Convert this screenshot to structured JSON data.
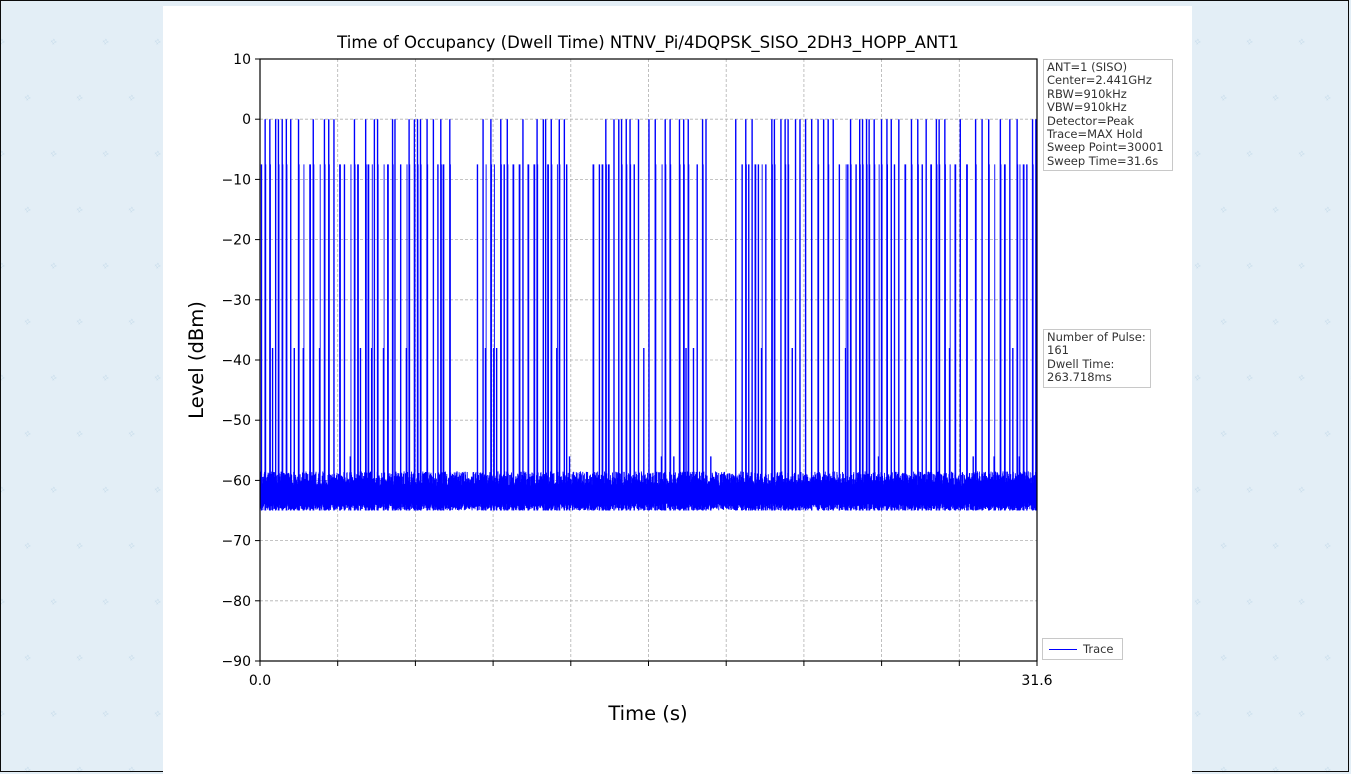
{
  "chart_data": {
    "type": "line",
    "title": "Time of Occupancy (Dwell Time) NTNV_Pi/4DQPSK_SISO_2DH3_HOPP_ANT1",
    "xlabel": "Time (s)",
    "ylabel": "Level (dBm)",
    "xlim": [
      0.0,
      31.6
    ],
    "ylim": [
      -90,
      10
    ],
    "x_tick_labels": [
      "0.0",
      "31.6"
    ],
    "y_ticks": [
      10,
      0,
      -10,
      -20,
      -30,
      -40,
      -50,
      -60,
      -70,
      -80,
      -90
    ],
    "y_tick_labels": [
      "10",
      "0",
      "−10",
      "−20",
      "−30",
      "−40",
      "−50",
      "−60",
      "−70",
      "−80",
      "−90"
    ],
    "grid": true,
    "legend_position": "bottom-right outside",
    "series": [
      {
        "name": "Trace",
        "color": "#0000ff",
        "noise_floor_dbm": [
          -65,
          -61
        ],
        "pulse_levels_dbm": [
          0,
          -7.5,
          -38,
          -56
        ],
        "quiet_intervals_s": [
          [
            7.9,
            8.8
          ],
          [
            12.6,
            13.5
          ],
          [
            18.5,
            19.3
          ]
        ],
        "number_of_pulses": 161
      }
    ]
  },
  "settings_box": {
    "lines": [
      "ANT=1 (SISO)",
      "Center=2.441GHz",
      "RBW=910kHz",
      "VBW=910kHz",
      "Detector=Peak",
      "Trace=MAX Hold",
      "Sweep Point=30001",
      "Sweep Time=31.6s"
    ]
  },
  "result_box": {
    "lines": [
      "Number of Pulse:",
      "161",
      "Dwell Time:",
      "263.718ms"
    ]
  },
  "legend": {
    "label": "Trace"
  },
  "colors": {
    "trace": "#0000ff",
    "page_background": "#e3eef6",
    "grid": "#b0b0b0"
  }
}
